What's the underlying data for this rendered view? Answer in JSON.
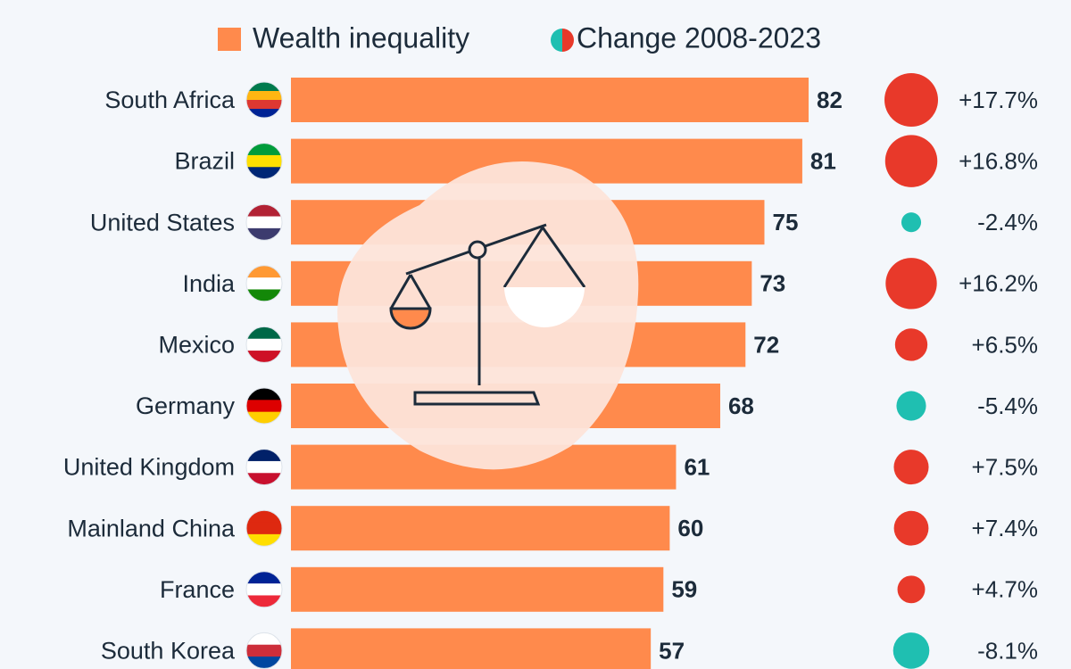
{
  "chart_data": {
    "type": "bar",
    "orientation": "horizontal",
    "categories": [
      "South Africa",
      "Brazil",
      "United States",
      "India",
      "Mexico",
      "Germany",
      "United Kingdom",
      "Mainland China",
      "France",
      "South Korea"
    ],
    "series": [
      {
        "name": "Wealth inequality",
        "color": "#ff8a4c",
        "values": [
          82,
          81,
          75,
          73,
          72,
          68,
          61,
          60,
          59,
          57
        ]
      },
      {
        "name": "Change 2008-2023",
        "positive_color": "#e8392a",
        "negative_color": "#1fbfb1",
        "values": [
          17.7,
          16.8,
          -2.4,
          16.2,
          6.5,
          -5.4,
          7.5,
          7.4,
          4.7,
          -8.1
        ],
        "value_labels": [
          "+17.7%",
          "+16.8%",
          "-2.4%",
          "+16.2%",
          "+6.5%",
          "-5.4%",
          "+7.5%",
          "+7.4%",
          "+4.7%",
          "-8.1%"
        ]
      }
    ]
  }
}
